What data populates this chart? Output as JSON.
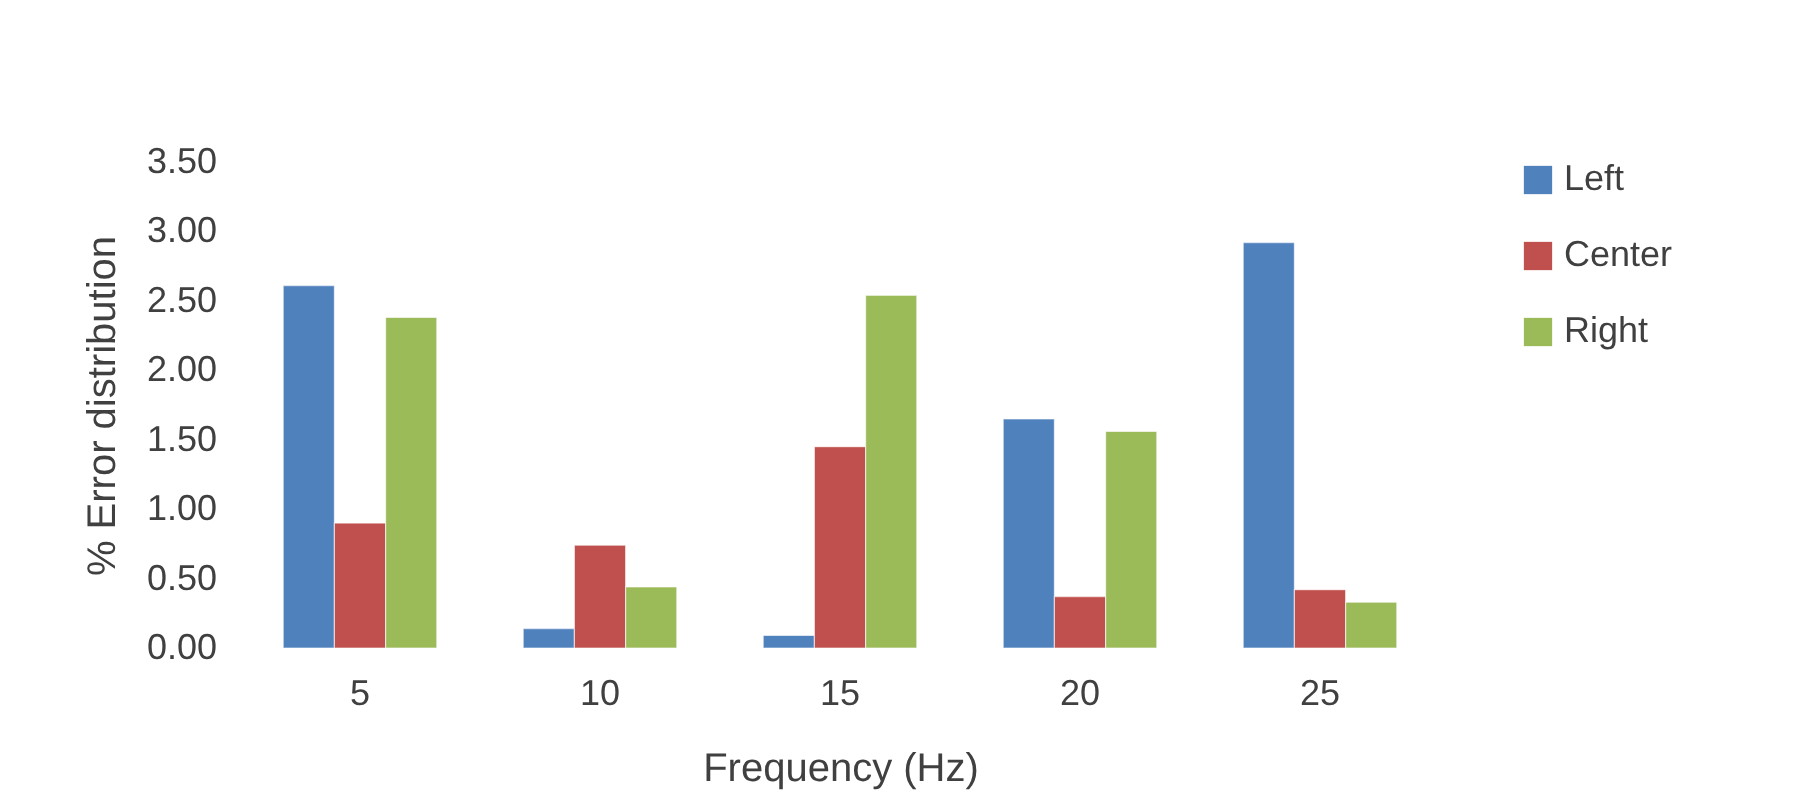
{
  "chart_data": {
    "type": "bar",
    "xlabel": "Frequency (Hz)",
    "ylabel": "% Error distribution",
    "categories": [
      "5",
      "10",
      "15",
      "20",
      "25"
    ],
    "series": [
      {
        "name": "Left",
        "color": "#4f81bd",
        "values": [
          2.61,
          0.14,
          0.09,
          1.65,
          2.92
        ]
      },
      {
        "name": "Center",
        "color": "#c0504d",
        "values": [
          0.9,
          0.74,
          1.45,
          0.37,
          0.42
        ]
      },
      {
        "name": "Right",
        "color": "#9bbb59",
        "values": [
          2.38,
          0.44,
          2.54,
          1.56,
          0.33
        ]
      }
    ],
    "ylim": [
      0,
      3.5
    ],
    "yticks": [
      {
        "value": 0,
        "label": "0.00"
      },
      {
        "value": 0.5,
        "label": "0.50"
      },
      {
        "value": 1,
        "label": "1.00"
      },
      {
        "value": 1.5,
        "label": "1.50"
      },
      {
        "value": 2,
        "label": "2.00"
      },
      {
        "value": 2.5,
        "label": "2.50"
      },
      {
        "value": 3,
        "label": "3.00"
      },
      {
        "value": 3.5,
        "label": "3.50"
      }
    ],
    "grid": false,
    "legend": "right"
  }
}
